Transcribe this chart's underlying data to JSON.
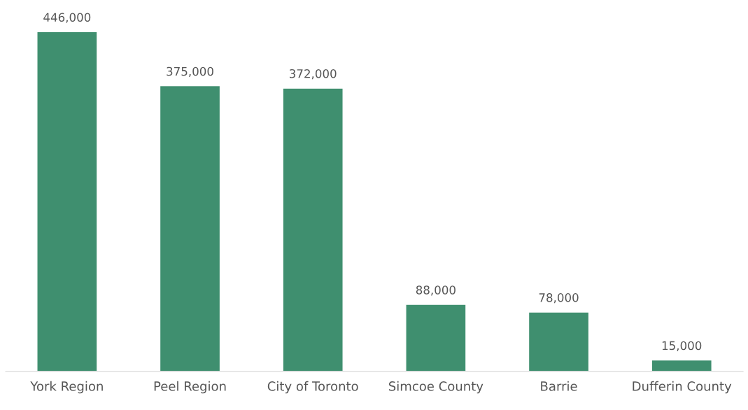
{
  "chart_data": {
    "type": "bar",
    "categories": [
      "York Region",
      "Peel Region",
      "City of Toronto",
      "Simcoe County",
      "Barrie",
      "Dufferin County"
    ],
    "values": [
      446000,
      375000,
      372000,
      88000,
      78000,
      15000
    ],
    "value_labels": [
      "446,000",
      "375,000",
      "372,000",
      "88,000",
      "78,000",
      "15,000"
    ],
    "color": "#3f8f6f",
    "tick_labels": "x",
    "grid": false,
    "legend": false
  }
}
